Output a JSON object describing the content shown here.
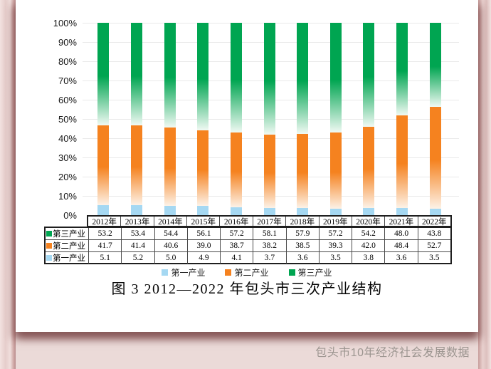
{
  "page": {
    "watermark": "包头市10年经济社会发展数据"
  },
  "colors": {
    "primary_blue": "#a5d8f2",
    "secondary_orange": "#f5821f",
    "secondary_fade": "#fdf2e7",
    "tertiary_green": "#00a551",
    "tertiary_fade": "#f0f9f3",
    "background_pink": "#ebdad8",
    "gridline_gray": "#eaeaea",
    "watermark_gray": "#9c9590"
  },
  "chart_data": {
    "type": "bar",
    "stacked": true,
    "percent": true,
    "title": "图 3 2012—2022 年包头市三次产业结构",
    "categories": [
      "2012年",
      "2013年",
      "2014年",
      "2015年",
      "2016年",
      "2017年",
      "2018年",
      "2019年",
      "2020年",
      "2021年",
      "2022年"
    ],
    "series": [
      {
        "key": "primary",
        "name": "第一产业",
        "color_key": "primary_blue",
        "values": [
          5.1,
          5.2,
          5.0,
          4.9,
          4.1,
          3.7,
          3.6,
          3.5,
          3.8,
          3.6,
          3.5
        ]
      },
      {
        "key": "secondary",
        "name": "第二产业",
        "color_key": "secondary_orange",
        "values": [
          41.7,
          41.4,
          40.6,
          39.0,
          38.7,
          38.2,
          38.5,
          39.3,
          42.0,
          48.4,
          52.7
        ]
      },
      {
        "key": "tertiary",
        "name": "第三产业",
        "color_key": "tertiary_green",
        "values": [
          53.2,
          53.4,
          54.4,
          56.1,
          57.2,
          58.1,
          57.9,
          57.2,
          54.2,
          48.0,
          43.8
        ]
      }
    ],
    "y_ticks": [
      "100%",
      "90%",
      "80%",
      "70%",
      "60%",
      "50%",
      "40%",
      "30%",
      "20%",
      "10%",
      "0%"
    ],
    "ylim": [
      0,
      100
    ],
    "grid": "horizontal",
    "legend_position": "bottom"
  },
  "table": {
    "rows": [
      {
        "key": "tertiary",
        "label": "第三产业",
        "color_key": "tertiary_green",
        "values": [
          "53.2",
          "53.4",
          "54.4",
          "56.1",
          "57.2",
          "58.1",
          "57.9",
          "57.2",
          "54.2",
          "48.0",
          "43.8"
        ]
      },
      {
        "key": "secondary",
        "label": "第二产业",
        "color_key": "secondary_orange",
        "values": [
          "41.7",
          "41.4",
          "40.6",
          "39.0",
          "38.7",
          "38.2",
          "38.5",
          "39.3",
          "42.0",
          "48.4",
          "52.7"
        ]
      },
      {
        "key": "primary",
        "label": "第一产业",
        "color_key": "primary_blue",
        "values": [
          "5.1",
          "5.2",
          "5.0",
          "4.9",
          "4.1",
          "3.7",
          "3.6",
          "3.5",
          "3.8",
          "3.6",
          "3.5"
        ]
      }
    ]
  },
  "legend": {
    "items": [
      {
        "key": "primary",
        "label": "第一产业",
        "color_key": "primary_blue"
      },
      {
        "key": "secondary",
        "label": "第二产业",
        "color_key": "secondary_orange"
      },
      {
        "key": "tertiary",
        "label": "第三产业",
        "color_key": "tertiary_green"
      }
    ]
  }
}
